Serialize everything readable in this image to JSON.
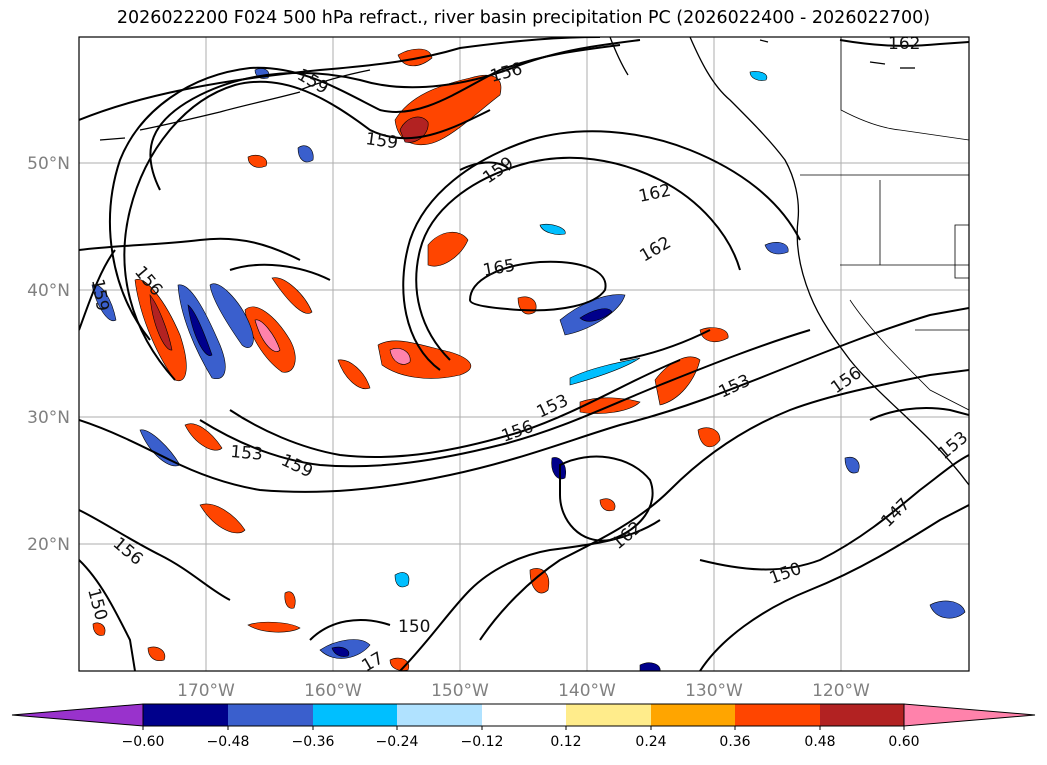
{
  "title": "2026022200 F024 500 hPa refract., river basin precipitation PC (2026022400 - 2026022700)",
  "lat_labels": [
    "50°N",
    "40°N",
    "30°N",
    "20°N"
  ],
  "lon_labels": [
    "170°W",
    "160°W",
    "150°W",
    "140°W",
    "130°W",
    "120°W"
  ],
  "colorbar": {
    "colors": [
      "#9932cc",
      "#00008b",
      "#3a5fcd",
      "#00bfff",
      "#b0e2ff",
      "#ffffff",
      "#ffec8b",
      "#ffa500",
      "#ff4500",
      "#b22222",
      "#ff82ab"
    ],
    "tick_labels": [
      "−0.60",
      "−0.48",
      "−0.36",
      "−0.24",
      "−0.12",
      "0.12",
      "0.24",
      "0.36",
      "0.48",
      "0.60"
    ]
  },
  "contour_labels": [
    "162",
    "159",
    "156",
    "159",
    "159",
    "162",
    "165",
    "162",
    "156",
    "159",
    "153",
    "159",
    "156",
    "153",
    "153",
    "156",
    "153",
    "156",
    "162",
    "150",
    "150",
    "150",
    "147",
    "17"
  ]
}
